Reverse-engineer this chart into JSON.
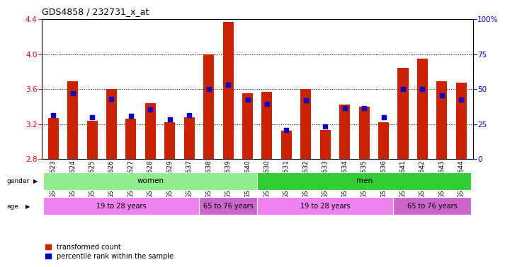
{
  "title": "GDS4858 / 232731_x_at",
  "samples": [
    "GSM948623",
    "GSM948624",
    "GSM948625",
    "GSM948626",
    "GSM948627",
    "GSM948628",
    "GSM948629",
    "GSM948637",
    "GSM948638",
    "GSM948639",
    "GSM948640",
    "GSM948630",
    "GSM948631",
    "GSM948632",
    "GSM948633",
    "GSM948634",
    "GSM948635",
    "GSM948636",
    "GSM948641",
    "GSM948642",
    "GSM948643",
    "GSM948644"
  ],
  "red_values": [
    3.27,
    3.69,
    3.24,
    3.6,
    3.26,
    3.44,
    3.22,
    3.28,
    4.0,
    4.37,
    3.55,
    3.57,
    3.12,
    3.6,
    3.13,
    3.42,
    3.4,
    3.22,
    3.84,
    3.95,
    3.69,
    3.67
  ],
  "blue_values_left": [
    3.3,
    3.55,
    3.28,
    3.49,
    3.29,
    3.37,
    3.25,
    3.3,
    3.6,
    3.65,
    3.48,
    3.43,
    3.13,
    3.47,
    3.17,
    3.38,
    3.38,
    3.28,
    3.6,
    3.6,
    3.53,
    3.48
  ],
  "ylim_left": [
    2.8,
    4.4
  ],
  "ylim_right": [
    0,
    100
  ],
  "yticks_left": [
    2.8,
    3.2,
    3.6,
    4.0,
    4.4
  ],
  "yticks_right": [
    0,
    25,
    50,
    75,
    100
  ],
  "grid_lines": [
    3.2,
    3.6,
    4.0
  ],
  "gender_groups": [
    {
      "label": "women",
      "start": 0,
      "end": 10,
      "color": "#90ee90"
    },
    {
      "label": "men",
      "start": 11,
      "end": 21,
      "color": "#32cd32"
    }
  ],
  "age_groups": [
    {
      "label": "19 to 28 years",
      "start": 0,
      "end": 7,
      "color": "#ee82ee"
    },
    {
      "label": "65 to 76 years",
      "start": 8,
      "end": 10,
      "color": "#cc66cc"
    },
    {
      "label": "19 to 28 years",
      "start": 11,
      "end": 17,
      "color": "#ee82ee"
    },
    {
      "label": "65 to 76 years",
      "start": 18,
      "end": 21,
      "color": "#cc66cc"
    }
  ],
  "red_color": "#cc2200",
  "blue_color": "#0000cc",
  "bar_width": 0.55,
  "blue_marker_size": 5,
  "background_color": "#ffffff",
  "title_fontsize": 9,
  "tick_fontsize": 6.5
}
